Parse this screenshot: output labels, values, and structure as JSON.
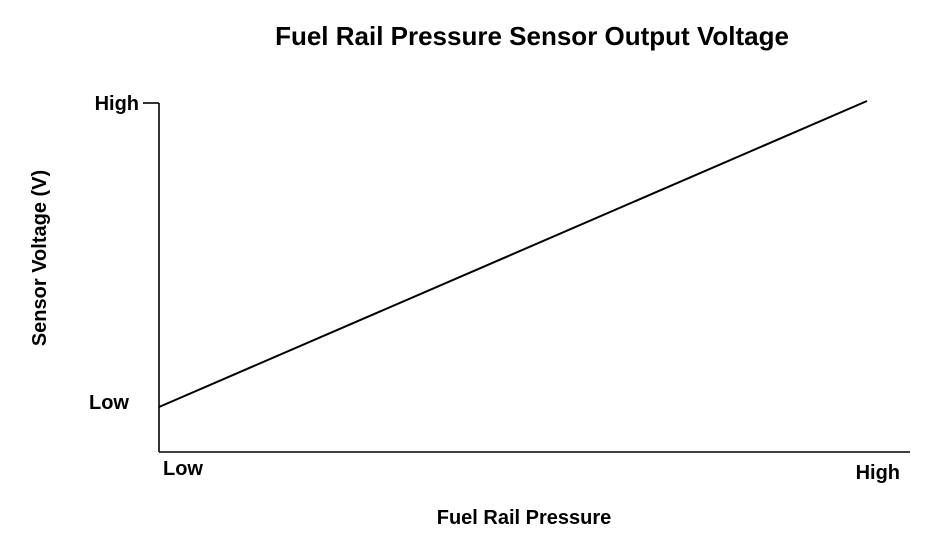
{
  "chart_data": {
    "type": "line",
    "title": "Fuel Rail Pressure Sensor Output Voltage",
    "xlabel": "Fuel Rail Pressure",
    "ylabel": "Sensor Voltage (V)",
    "x_ticks": [
      "Low",
      "High"
    ],
    "y_ticks": [
      "Low",
      "High"
    ],
    "x_range": [
      0,
      1
    ],
    "y_range": [
      0,
      1
    ],
    "grid": false,
    "series": [
      {
        "x": [
          0,
          1
        ],
        "y": [
          0,
          1
        ]
      }
    ],
    "colors": {
      "line": "#000000",
      "axis": "#000000"
    }
  }
}
